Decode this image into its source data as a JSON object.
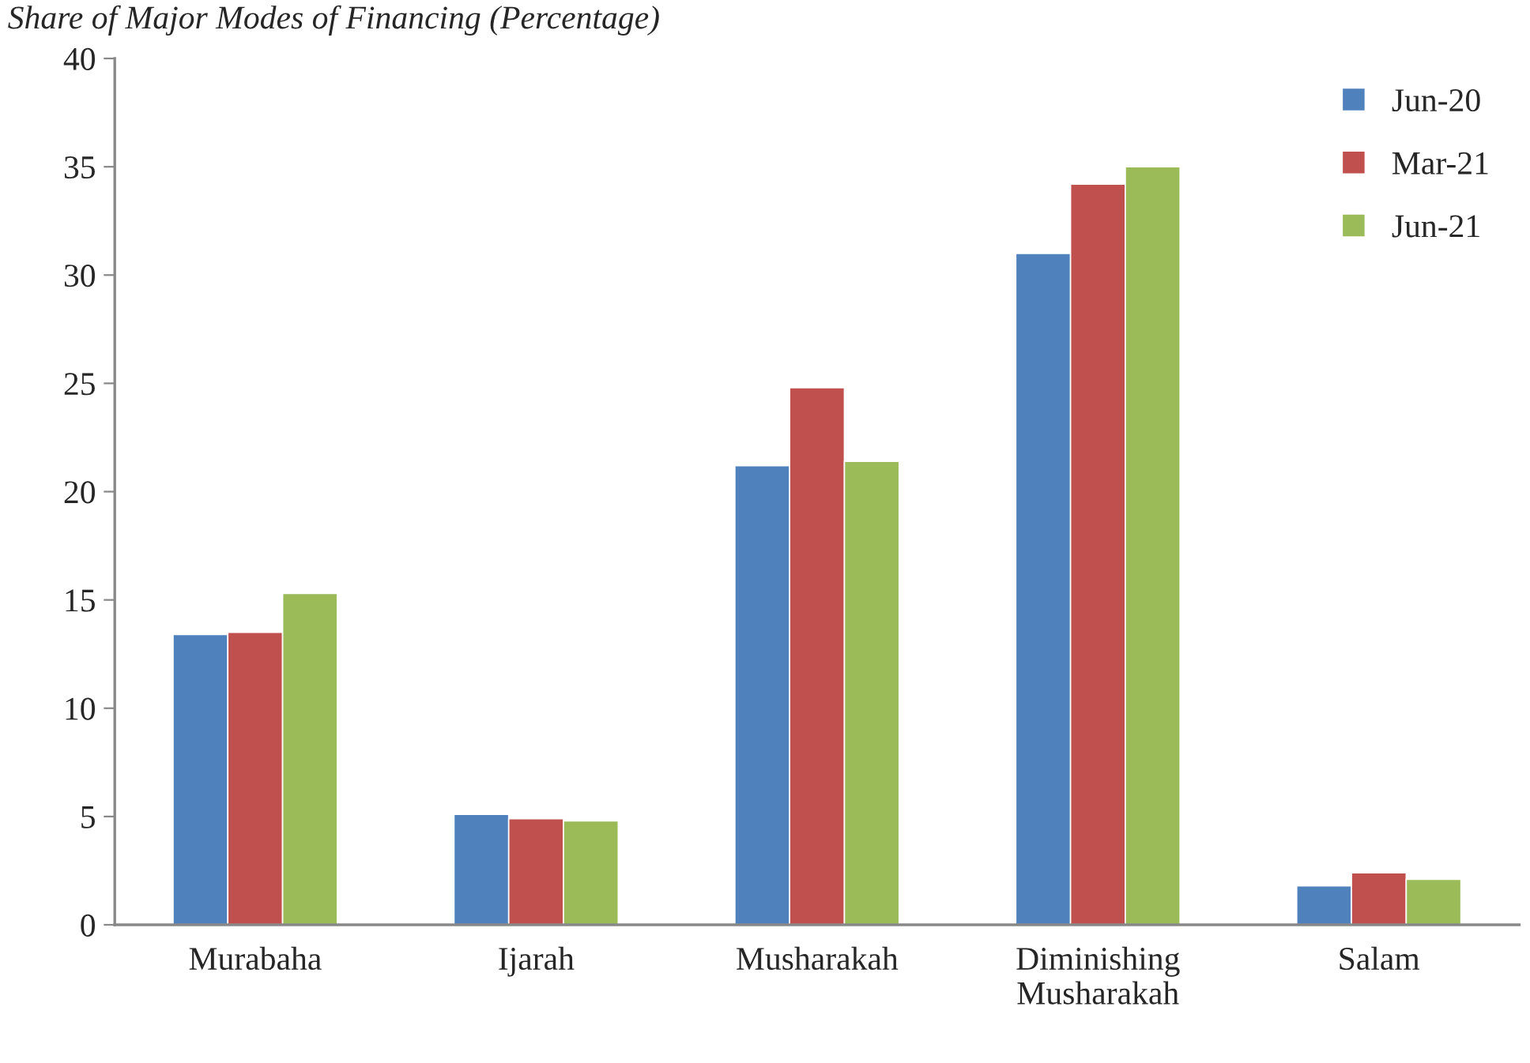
{
  "chart_data": {
    "type": "bar",
    "title": "Share of Major Modes of Financing (Percentage)",
    "categories": [
      "Murabaha",
      "Ijarah",
      "Musharakah",
      "Diminishing\nMusharakah",
      "Salam"
    ],
    "series": [
      {
        "name": "Jun-20",
        "color": "#4f81bd",
        "values": [
          13.4,
          5.1,
          21.2,
          31.0,
          1.8
        ]
      },
      {
        "name": "Mar-21",
        "color": "#c0504d",
        "values": [
          13.5,
          4.9,
          24.8,
          34.2,
          2.4
        ]
      },
      {
        "name": "Jun-21",
        "color": "#9bbb59",
        "values": [
          15.3,
          4.8,
          21.4,
          35.0,
          2.1
        ]
      }
    ],
    "ylim": [
      0,
      40
    ],
    "yticks": [
      0,
      5,
      10,
      15,
      20,
      25,
      30,
      35,
      40
    ],
    "grid": false,
    "legend": "top right"
  }
}
